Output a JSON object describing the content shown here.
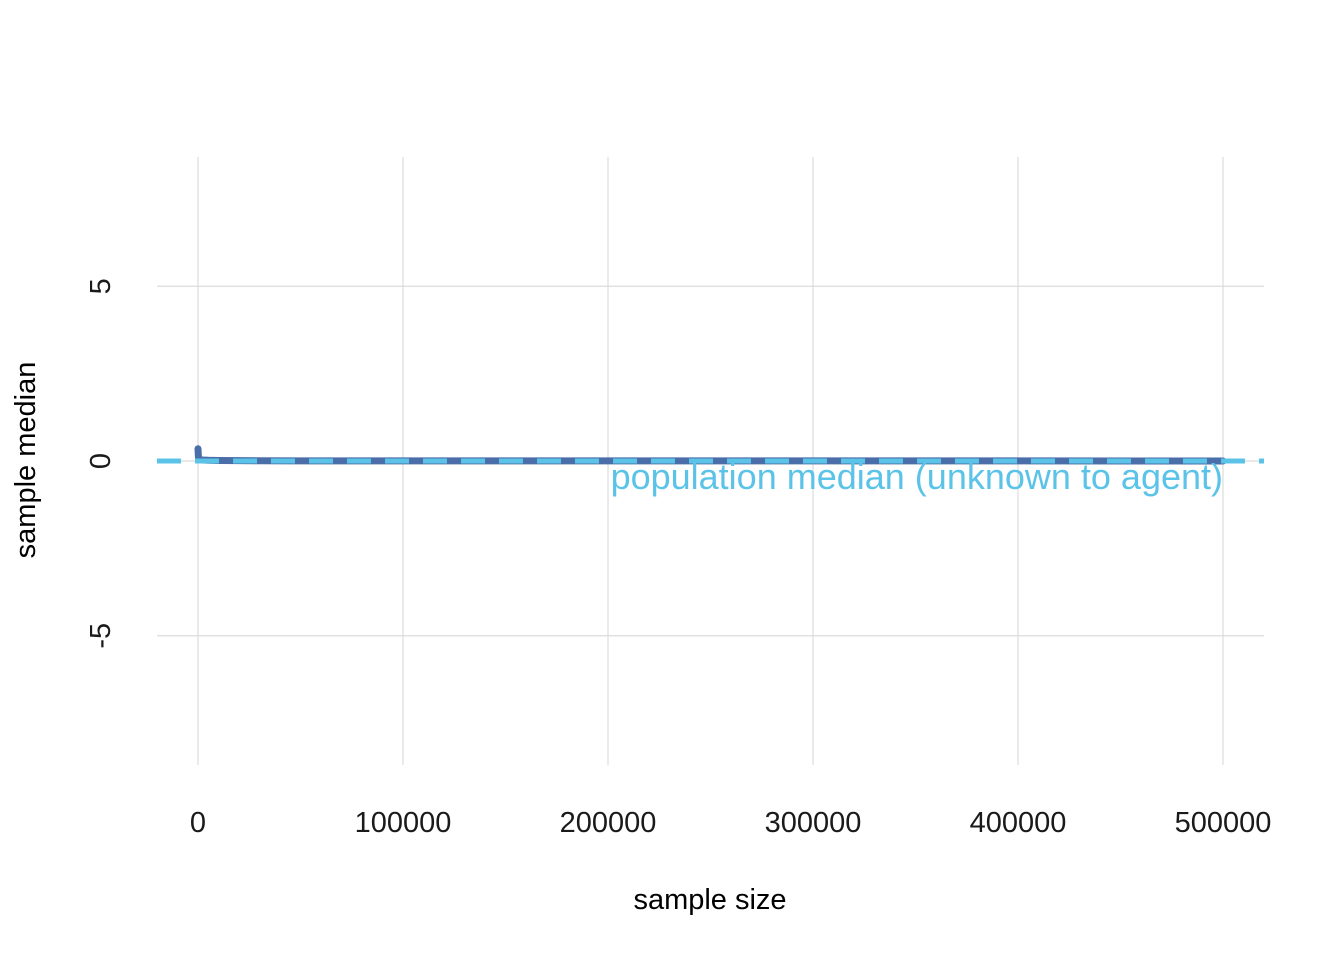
{
  "chart_data": {
    "type": "line",
    "xlabel": "sample size",
    "ylabel": "sample median",
    "xlim": [
      -20000,
      520000
    ],
    "ylim": [
      -8.7,
      8.7
    ],
    "x_ticks": [
      0,
      100000,
      200000,
      300000,
      400000,
      500000
    ],
    "x_tick_labels": [
      "0",
      "100000",
      "200000",
      "300000",
      "400000",
      "500000"
    ],
    "y_ticks": [
      -5,
      0,
      5
    ],
    "y_tick_labels": [
      "-5",
      "0",
      "5"
    ],
    "grid": true,
    "series": [
      {
        "style": "solid",
        "color": "#4a6ea8",
        "x": [
          1,
          200,
          500,
          1000,
          2000,
          5000,
          10000,
          20000,
          50000,
          100000,
          200000,
          300000,
          400000,
          500000
        ],
        "y": [
          0.35,
          0.12,
          0.06,
          0.04,
          0.03,
          0.02,
          0.015,
          0.01,
          0.005,
          0.004,
          0.003,
          0.002,
          0.002,
          0.001
        ]
      }
    ],
    "reference_lines": [
      {
        "label": "population median (unknown to agent)",
        "y": 0,
        "style": "dashed",
        "color": "#5bc3e8"
      }
    ]
  }
}
